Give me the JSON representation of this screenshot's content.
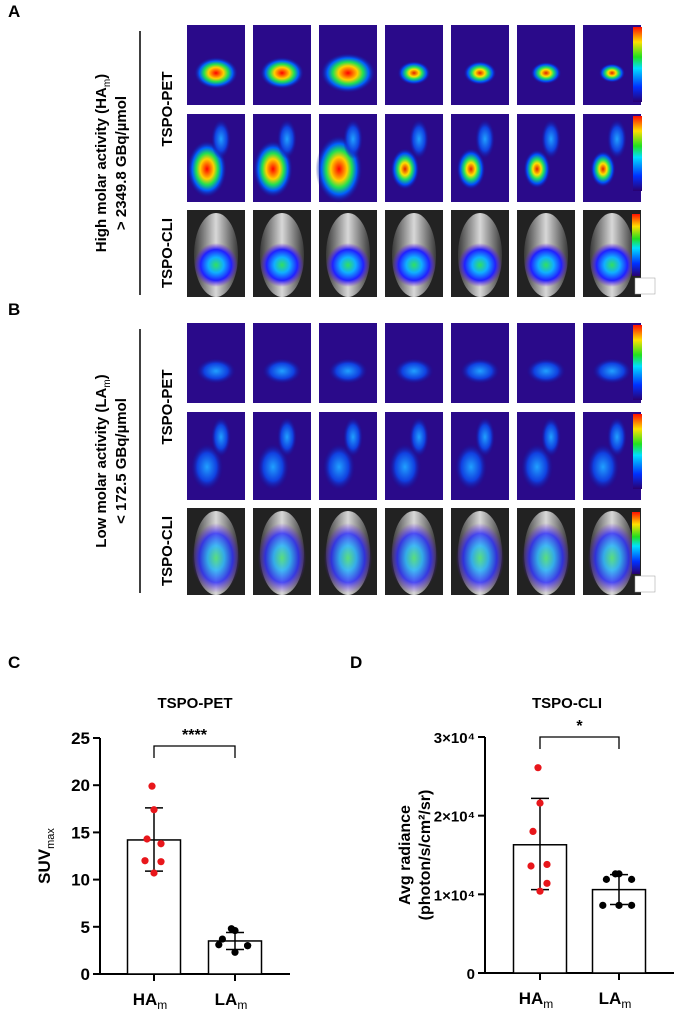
{
  "panels": {
    "A": {
      "label": "A",
      "group_title": "High molar activity (HA",
      "group_sub": "m",
      "group_title_end": ")",
      "group_value": "> 2349.8 GBq/µmol",
      "row_pet": "TSPO-PET",
      "row_cli": "TSPO-CLI",
      "n_animals": 7
    },
    "B": {
      "label": "B",
      "group_title": "Low molar activity (LA",
      "group_sub": "m",
      "group_title_end": ")",
      "group_value": "< 172.5 GBq/µmol",
      "row_pet": "TSPO-PET",
      "row_cli": "TSPO-CLI",
      "n_animals": 7
    }
  },
  "colors": {
    "ha_points": "#e8161b",
    "la_points": "#000000",
    "bar_fill": "#ffffff"
  },
  "chart_data": [
    {
      "panel_label": "C",
      "type": "bar",
      "title": "TSPO-PET",
      "ylabel": "SUV",
      "ylabel_sub": "max",
      "categories": [
        {
          "main": "HA",
          "sub": "m"
        },
        {
          "main": "LA",
          "sub": "m"
        }
      ],
      "ylim": [
        0,
        25
      ],
      "yticks": [
        0,
        5,
        10,
        15,
        20,
        25
      ],
      "ytick_labels": [
        "0",
        "5",
        "10",
        "15",
        "20",
        "25"
      ],
      "bars": [
        {
          "mean": 14.2,
          "err_high": 17.6,
          "err_low": 10.9,
          "points": [
            19.9,
            17.4,
            14.3,
            13.8,
            12.0,
            11.9,
            10.7
          ]
        },
        {
          "mean": 3.5,
          "err_high": 4.4,
          "err_low": 2.6,
          "points": [
            4.8,
            4.6,
            3.7,
            3.0,
            3.1,
            3.0,
            2.3
          ]
        }
      ],
      "significance": "****"
    },
    {
      "panel_label": "D",
      "type": "bar",
      "title": "TSPO-CLI",
      "ylabel": "Avg radiance",
      "ylabel2": "(photon/s/cm²/sr)",
      "categories": [
        {
          "main": "HA",
          "sub": "m"
        },
        {
          "main": "LA",
          "sub": "m"
        }
      ],
      "ylim": [
        0,
        30000
      ],
      "yticks": [
        0,
        10000,
        20000,
        30000
      ],
      "ytick_labels": [
        "0",
        "1×10⁴",
        "2×10⁴",
        "3×10⁴"
      ],
      "bars": [
        {
          "mean": 16300,
          "err_high": 22200,
          "err_low": 10600,
          "points": [
            26100,
            21600,
            18000,
            13800,
            13600,
            11400,
            10400
          ]
        },
        {
          "mean": 10600,
          "err_high": 12500,
          "err_low": 8700,
          "points": [
            12600,
            12600,
            11900,
            11900,
            8600,
            8600,
            8600
          ]
        }
      ],
      "significance": "*"
    }
  ]
}
